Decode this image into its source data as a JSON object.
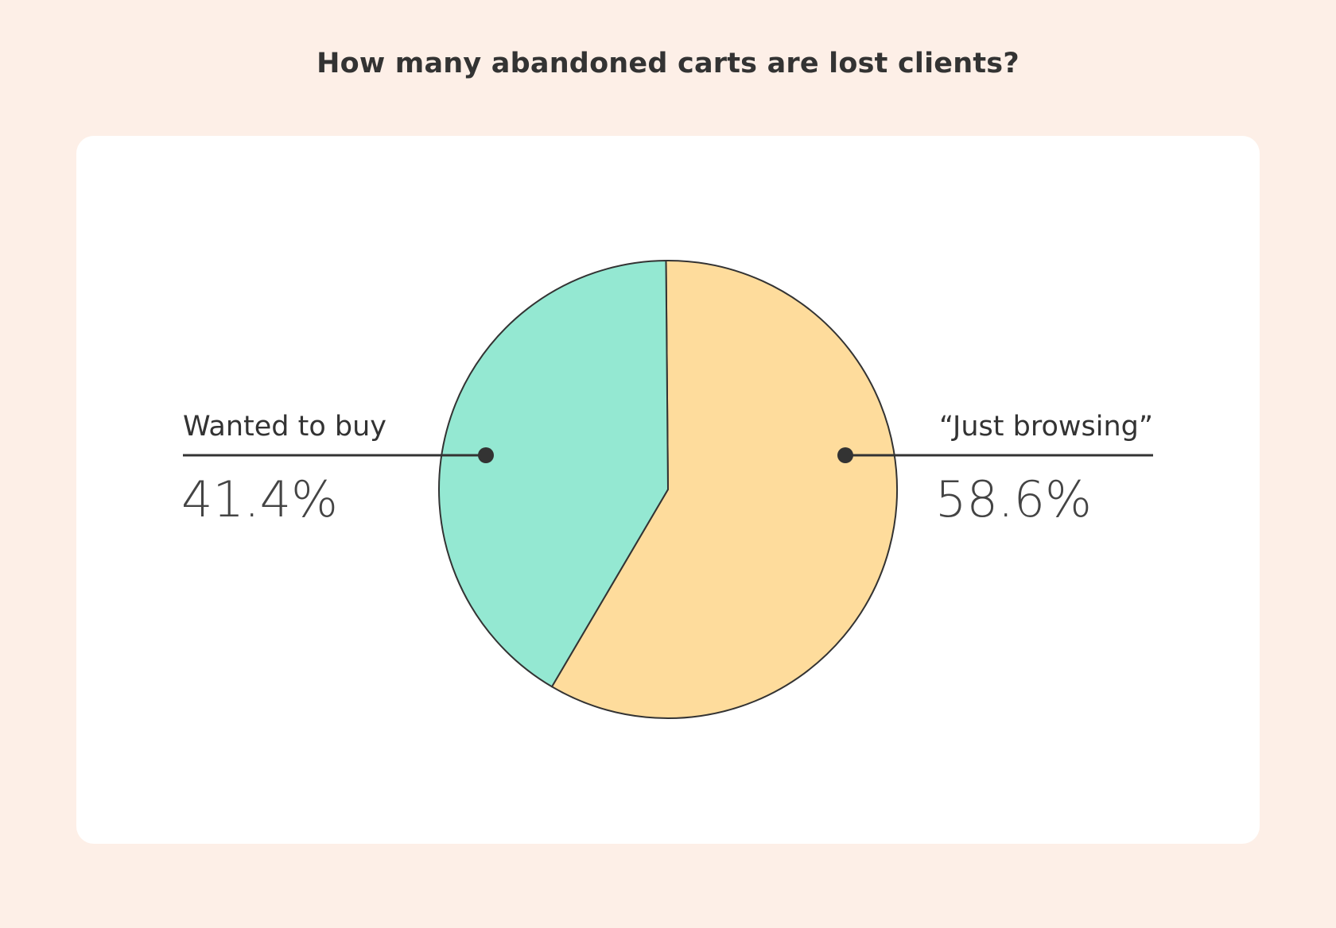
{
  "title": "How many abandoned carts are lost clients?",
  "colors": {
    "page_background": "#fdefe7",
    "card_background": "#ffffff",
    "wanted_to_buy": "#94e8d2",
    "just_browsing": "#fedc9c",
    "outline": "#333333"
  },
  "chart_data": {
    "type": "pie",
    "title": "How many abandoned carts are lost clients?",
    "slices": [
      {
        "label": "Wanted to buy",
        "value": 41.4,
        "value_label": "41.4%",
        "color": "#94e8d2",
        "label_side": "left"
      },
      {
        "label": "“Just browsing”",
        "value": 58.6,
        "value_label": "58.6%",
        "color": "#fedc9c",
        "label_side": "right"
      }
    ],
    "legend": "none"
  }
}
